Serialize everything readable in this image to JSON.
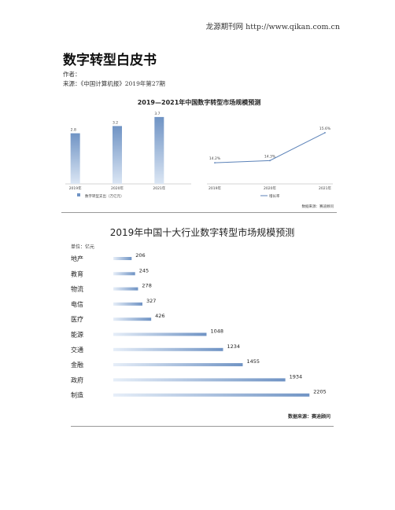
{
  "header": {
    "source_line": "龙源期刊网 http://www.qikan.com.cn"
  },
  "article": {
    "title": "数字转型白皮书",
    "author_line": "作者：",
    "source_line": "来源：《中国计算机报》2019年第27期"
  },
  "chart_data": [
    {
      "type": "bar",
      "title": "2019—2021年中国数字转型市场规模预测",
      "categories": [
        "2019年",
        "2020年",
        "2021年"
      ],
      "series": [
        {
          "name": "数字转型支出（万亿元）",
          "values": [
            2.8,
            3.2,
            3.7
          ]
        }
      ],
      "ylim": [
        0,
        4
      ],
      "grid": false,
      "legend": "bottom",
      "colors": {
        "bar": "#6f93c4",
        "bar_light": "#dbe6f4"
      }
    },
    {
      "type": "line",
      "categories": [
        "2019年",
        "2020年",
        "2021年"
      ],
      "series": [
        {
          "name": "增长率",
          "values": [
            14.2,
            14.3,
            15.6
          ],
          "labels": [
            "14.2%",
            "14.3%",
            "15.6%"
          ]
        }
      ],
      "ylim": [
        13.8,
        16.0
      ],
      "grid": false,
      "legend": "bottom",
      "source_note": "数据来源：赛迪顾问",
      "colors": {
        "line": "#5b82b8"
      }
    },
    {
      "type": "bar",
      "orientation": "horizontal",
      "title": "2019年中国十大行业数字转型市场规模预测",
      "unit_label": "单位：亿元",
      "categories": [
        "地产",
        "教育",
        "物流",
        "电信",
        "医疗",
        "能源",
        "交通",
        "金融",
        "政府",
        "制造"
      ],
      "values": [
        206,
        245,
        278,
        327,
        426,
        1048,
        1234,
        1455,
        1934,
        2205
      ],
      "xlim": [
        0,
        2300
      ],
      "grid": false,
      "source_note": "数据来源：赛迪顾问",
      "colors": {
        "bar": "#6f93c4",
        "bar_light": "#e6eef8"
      }
    }
  ]
}
